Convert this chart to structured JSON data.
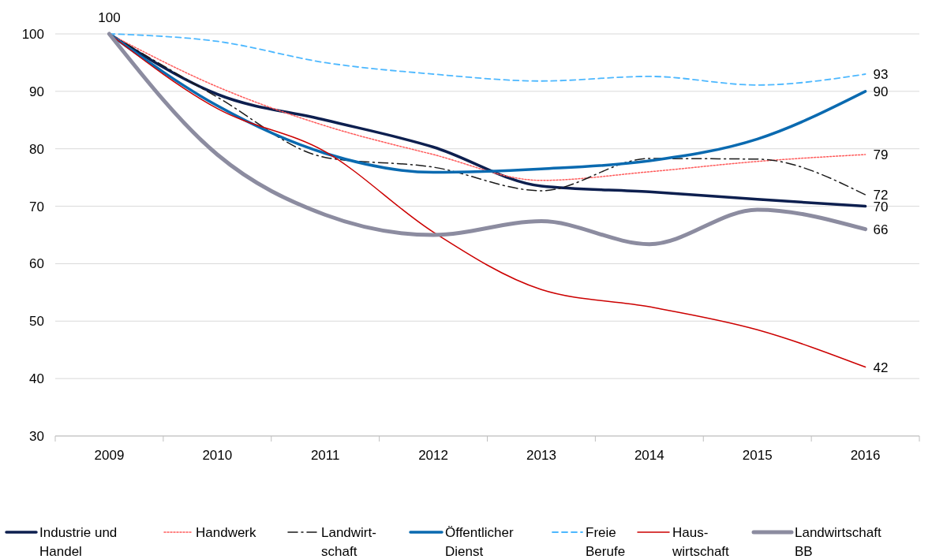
{
  "chart_data": {
    "type": "line",
    "categories": [
      "2009",
      "2010",
      "2011",
      "2012",
      "2013",
      "2014",
      "2015",
      "2016"
    ],
    "ylim": [
      30,
      100
    ],
    "yticks": [
      30,
      40,
      50,
      60,
      70,
      80,
      90,
      100
    ],
    "grid": "y",
    "legend": "bottom",
    "series": [
      {
        "name": "Industrie und\nHandel",
        "color": "#0d1f4f",
        "line_style": "solid",
        "values": [
          100,
          89.5,
          85,
          80.3,
          73.5,
          72.5,
          71.2,
          70
        ],
        "value_labels": [
          "100",
          null,
          null,
          null,
          null,
          null,
          null,
          "70"
        ]
      },
      {
        "name": "Handwerk",
        "color": "#ff5a5a",
        "line_style": "dotted",
        "values": [
          100,
          90.8,
          84,
          79,
          74.5,
          76,
          77.8,
          79
        ],
        "value_labels": [
          null,
          null,
          null,
          null,
          null,
          null,
          null,
          "79"
        ]
      },
      {
        "name": "Landwirt-\nschaft",
        "color": "#1a1a1a",
        "line_style": "dashdot",
        "values": [
          100,
          89,
          78.5,
          76.8,
          72.7,
          78.3,
          78.2,
          72
        ],
        "value_labels": [
          null,
          null,
          null,
          null,
          null,
          null,
          null,
          "72"
        ]
      },
      {
        "name": "Öffentlicher\nDienst",
        "color": "#0a6ab0",
        "line_style": "solid",
        "values": [
          100,
          87.5,
          79.2,
          75.9,
          76.5,
          77.9,
          81.7,
          90
        ],
        "value_labels": [
          null,
          null,
          null,
          null,
          null,
          null,
          null,
          "90"
        ]
      },
      {
        "name": "Freie\nBerufe",
        "color": "#4db8ff",
        "line_style": "dashed",
        "values": [
          100,
          98.7,
          95,
          93,
          91.8,
          92.6,
          91.1,
          93
        ],
        "value_labels": [
          null,
          null,
          null,
          null,
          null,
          null,
          null,
          "93"
        ]
      },
      {
        "name": "Haus-\nwirtschaft",
        "color": "#cc0000",
        "line_style": "solid",
        "values": [
          100,
          87,
          79.5,
          65.5,
          55.5,
          52.5,
          48.5,
          42
        ],
        "value_labels": [
          null,
          null,
          null,
          null,
          null,
          null,
          null,
          "42"
        ]
      },
      {
        "name": "Landwirtschaft\nBB",
        "color": "#8c8ca0",
        "line_style": "solid",
        "values": [
          100,
          79,
          68.5,
          65,
          67.4,
          63.4,
          69.4,
          66
        ],
        "value_labels": [
          null,
          null,
          null,
          null,
          null,
          null,
          null,
          "66"
        ]
      }
    ]
  }
}
